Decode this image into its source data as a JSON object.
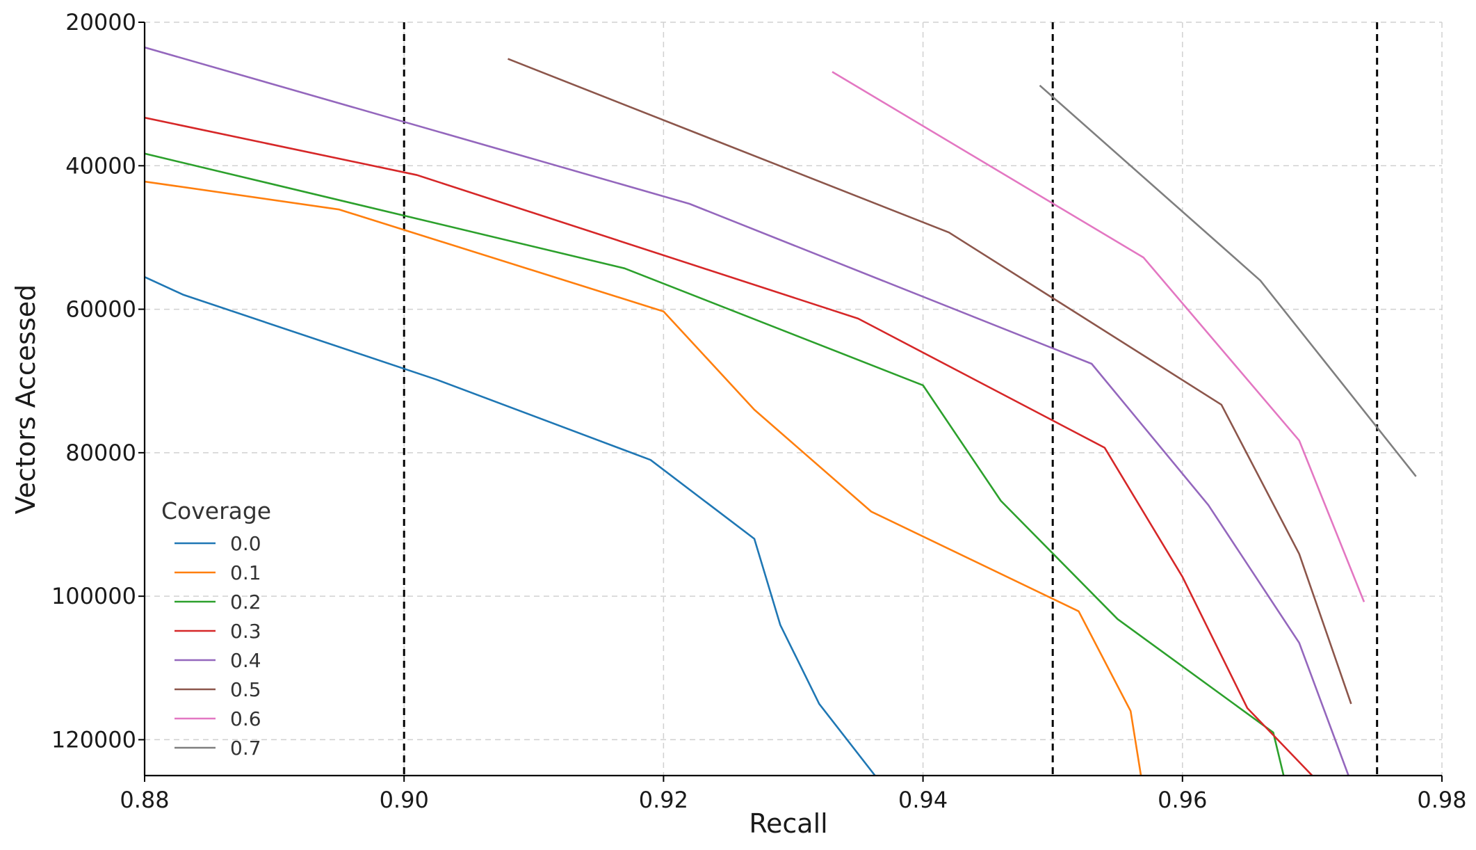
{
  "chart_data": {
    "type": "line",
    "xlabel": "Recall",
    "ylabel": "Vectors Accessed",
    "xlim": [
      0.88,
      0.98
    ],
    "ylim": [
      125000,
      20000
    ],
    "y_inverted": true,
    "grid": true,
    "legend_position": "lower-left",
    "legend_title": "Coverage",
    "x_ticks": [
      0.88,
      0.9,
      0.92,
      0.94,
      0.96,
      0.98
    ],
    "x_tick_labels": [
      "0.88",
      "0.90",
      "0.92",
      "0.94",
      "0.96",
      "0.98"
    ],
    "y_ticks": [
      20000,
      40000,
      60000,
      80000,
      100000,
      120000
    ],
    "y_tick_labels": [
      "20000",
      "40000",
      "60000",
      "80000",
      "100000",
      "120000"
    ],
    "reference_lines_x": [
      0.9,
      0.95,
      0.975
    ],
    "series": [
      {
        "name": "0.0",
        "color": "#1f77b4",
        "x": [
          0.88,
          0.883,
          0.9025,
          0.919,
          0.927,
          0.929,
          0.932,
          0.9363
        ],
        "y": [
          55500,
          58000,
          69800,
          81000,
          92000,
          104000,
          115000,
          125000
        ]
      },
      {
        "name": "0.1",
        "color": "#ff7f0e",
        "x": [
          0.88,
          0.895,
          0.92,
          0.927,
          0.936,
          0.952,
          0.956,
          0.9568
        ],
        "y": [
          42200,
          46100,
          60300,
          74000,
          88200,
          102100,
          116000,
          125000
        ]
      },
      {
        "name": "0.2",
        "color": "#2ca02c",
        "x": [
          0.88,
          0.917,
          0.94,
          0.946,
          0.955,
          0.967,
          0.9678
        ],
        "y": [
          38300,
          54300,
          70600,
          86700,
          103200,
          119000,
          125000
        ]
      },
      {
        "name": "0.3",
        "color": "#d62728",
        "x": [
          0.88,
          0.901,
          0.935,
          0.954,
          0.96,
          0.965,
          0.97
        ],
        "y": [
          33300,
          41300,
          61300,
          79300,
          97300,
          115600,
          125000
        ]
      },
      {
        "name": "0.4",
        "color": "#9467bd",
        "x": [
          0.88,
          0.922,
          0.953,
          0.962,
          0.969,
          0.9728
        ],
        "y": [
          23500,
          45300,
          67600,
          87300,
          106500,
          125000
        ]
      },
      {
        "name": "0.5",
        "color": "#8c564b",
        "x": [
          0.908,
          0.942,
          0.963,
          0.969,
          0.973
        ],
        "y": [
          25100,
          49300,
          73300,
          94100,
          115000
        ]
      },
      {
        "name": "0.6",
        "color": "#e377c2",
        "x": [
          0.933,
          0.957,
          0.969,
          0.974
        ],
        "y": [
          26900,
          52800,
          78300,
          100800
        ]
      },
      {
        "name": "0.7",
        "color": "#7f7f7f",
        "x": [
          0.949,
          0.966,
          0.978
        ],
        "y": [
          28800,
          56000,
          83300
        ]
      }
    ]
  }
}
